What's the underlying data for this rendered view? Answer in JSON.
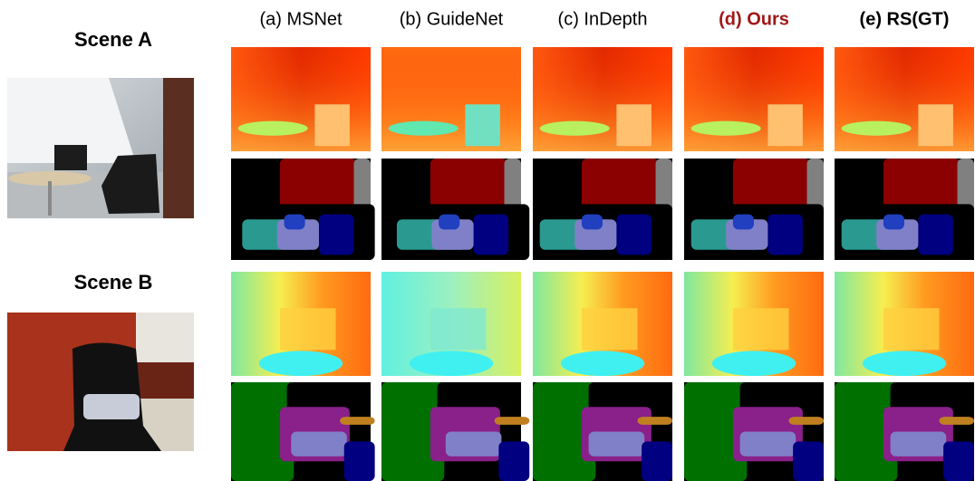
{
  "scenes": [
    {
      "label": "Scene A"
    },
    {
      "label": "Scene B"
    }
  ],
  "columns": [
    {
      "label": "(a) MSNet"
    },
    {
      "label": "(b) GuideNet"
    },
    {
      "label": "(c) InDepth"
    },
    {
      "label": "(d) Ours"
    },
    {
      "label": "(e) RS(GT)"
    }
  ]
}
